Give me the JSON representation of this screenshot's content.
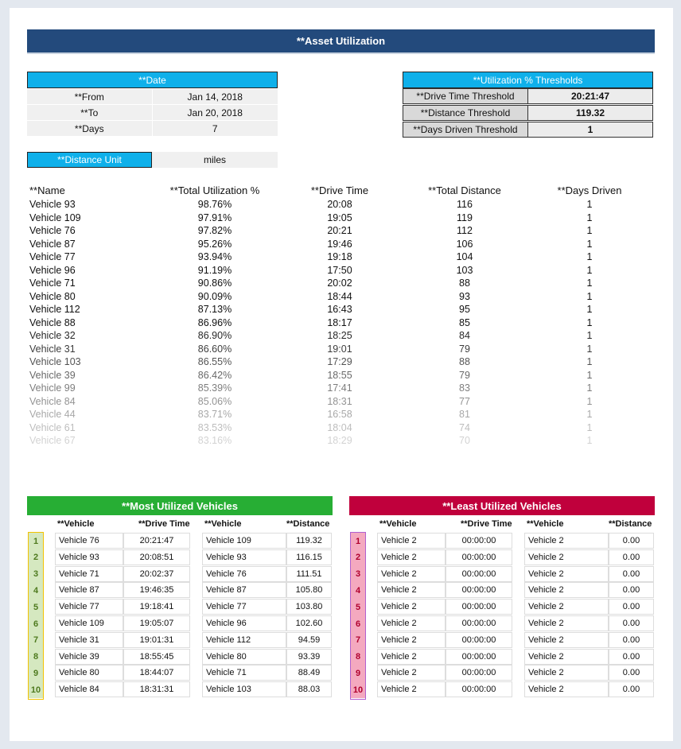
{
  "title": "**Asset Utilization",
  "date": {
    "header": "**Date",
    "from_label": "**From",
    "from": "Jan 14, 2018",
    "to_label": "**To",
    "to": "Jan 20, 2018",
    "days_label": "**Days",
    "days": "7"
  },
  "distance_unit": {
    "label": "**Distance Unit",
    "value": "miles"
  },
  "thresholds": {
    "header": "**Utilization % Thresholds",
    "rows": [
      {
        "label": "**Drive Time Threshold",
        "value": "20:21:47"
      },
      {
        "label": "**Distance Threshold",
        "value": "119.32"
      },
      {
        "label": "**Days Driven Threshold",
        "value": "1"
      }
    ]
  },
  "main_table": {
    "headers": [
      "**Name",
      "**Total Utilization %",
      "**Drive Time",
      "**Total Distance",
      "**Days Driven"
    ],
    "rows": [
      [
        "Vehicle 93",
        "98.76%",
        "20:08",
        "116",
        "1"
      ],
      [
        "Vehicle 109",
        "97.91%",
        "19:05",
        "119",
        "1"
      ],
      [
        "Vehicle 76",
        "97.82%",
        "20:21",
        "112",
        "1"
      ],
      [
        "Vehicle 87",
        "95.26%",
        "19:46",
        "106",
        "1"
      ],
      [
        "Vehicle 77",
        "93.94%",
        "19:18",
        "104",
        "1"
      ],
      [
        "Vehicle 96",
        "91.19%",
        "17:50",
        "103",
        "1"
      ],
      [
        "Vehicle 71",
        "90.86%",
        "20:02",
        "88",
        "1"
      ],
      [
        "Vehicle 80",
        "90.09%",
        "18:44",
        "93",
        "1"
      ],
      [
        "Vehicle 112",
        "87.13%",
        "16:43",
        "95",
        "1"
      ],
      [
        "Vehicle 88",
        "86.96%",
        "18:17",
        "85",
        "1"
      ],
      [
        "Vehicle 32",
        "86.90%",
        "18:25",
        "84",
        "1"
      ],
      [
        "Vehicle 31",
        "86.60%",
        "19:01",
        "79",
        "1"
      ],
      [
        "Vehicle 103",
        "86.55%",
        "17:29",
        "88",
        "1"
      ],
      [
        "Vehicle 39",
        "86.42%",
        "18:55",
        "79",
        "1"
      ],
      [
        "Vehicle 99",
        "85.39%",
        "17:41",
        "83",
        "1"
      ],
      [
        "Vehicle 84",
        "85.06%",
        "18:31",
        "77",
        "1"
      ],
      [
        "Vehicle 44",
        "83.71%",
        "16:58",
        "81",
        "1"
      ],
      [
        "Vehicle 61",
        "83.53%",
        "18:04",
        "74",
        "1"
      ],
      [
        "Vehicle 67",
        "83.16%",
        "18:29",
        "70",
        "1"
      ]
    ]
  },
  "most_utilized": {
    "header": "**Most Utilized Vehicles",
    "color": "#27ae34",
    "rank_bg": "#d5e8c0",
    "rank_color": "#4e7a1e",
    "rank_border": "#f2c200",
    "col_headers": [
      "**Vehicle",
      "**Drive Time",
      "**Vehicle",
      "**Distance"
    ],
    "rows": [
      [
        "1",
        "Vehicle 76",
        "20:21:47",
        "Vehicle 109",
        "119.32"
      ],
      [
        "2",
        "Vehicle 93",
        "20:08:51",
        "Vehicle 93",
        "116.15"
      ],
      [
        "3",
        "Vehicle 71",
        "20:02:37",
        "Vehicle 76",
        "111.51"
      ],
      [
        "4",
        "Vehicle 87",
        "19:46:35",
        "Vehicle 87",
        "105.80"
      ],
      [
        "5",
        "Vehicle 77",
        "19:18:41",
        "Vehicle 77",
        "103.80"
      ],
      [
        "6",
        "Vehicle 109",
        "19:05:07",
        "Vehicle 96",
        "102.60"
      ],
      [
        "7",
        "Vehicle 31",
        "19:01:31",
        "Vehicle 112",
        "94.59"
      ],
      [
        "8",
        "Vehicle 39",
        "18:55:45",
        "Vehicle 80",
        "93.39"
      ],
      [
        "9",
        "Vehicle 80",
        "18:44:07",
        "Vehicle 71",
        "88.49"
      ],
      [
        "10",
        "Vehicle 84",
        "18:31:31",
        "Vehicle 103",
        "88.03"
      ]
    ]
  },
  "least_utilized": {
    "header": "**Least Utilized Vehicles",
    "color": "#c0003c",
    "rank_bg": "#f4a9bf",
    "rank_color": "#b0002e",
    "rank_border": "#b060d0",
    "col_headers": [
      "**Vehicle",
      "**Drive Time",
      "**Vehicle",
      "**Distance"
    ],
    "rows": [
      [
        "1",
        "Vehicle 2",
        "00:00:00",
        "Vehicle 2",
        "0.00"
      ],
      [
        "2",
        "Vehicle 2",
        "00:00:00",
        "Vehicle 2",
        "0.00"
      ],
      [
        "3",
        "Vehicle 2",
        "00:00:00",
        "Vehicle 2",
        "0.00"
      ],
      [
        "4",
        "Vehicle 2",
        "00:00:00",
        "Vehicle 2",
        "0.00"
      ],
      [
        "5",
        "Vehicle 2",
        "00:00:00",
        "Vehicle 2",
        "0.00"
      ],
      [
        "6",
        "Vehicle 2",
        "00:00:00",
        "Vehicle 2",
        "0.00"
      ],
      [
        "7",
        "Vehicle 2",
        "00:00:00",
        "Vehicle 2",
        "0.00"
      ],
      [
        "8",
        "Vehicle 2",
        "00:00:00",
        "Vehicle 2",
        "0.00"
      ],
      [
        "9",
        "Vehicle 2",
        "00:00:00",
        "Vehicle 2",
        "0.00"
      ],
      [
        "10",
        "Vehicle 2",
        "00:00:00",
        "Vehicle 2",
        "0.00"
      ]
    ]
  }
}
